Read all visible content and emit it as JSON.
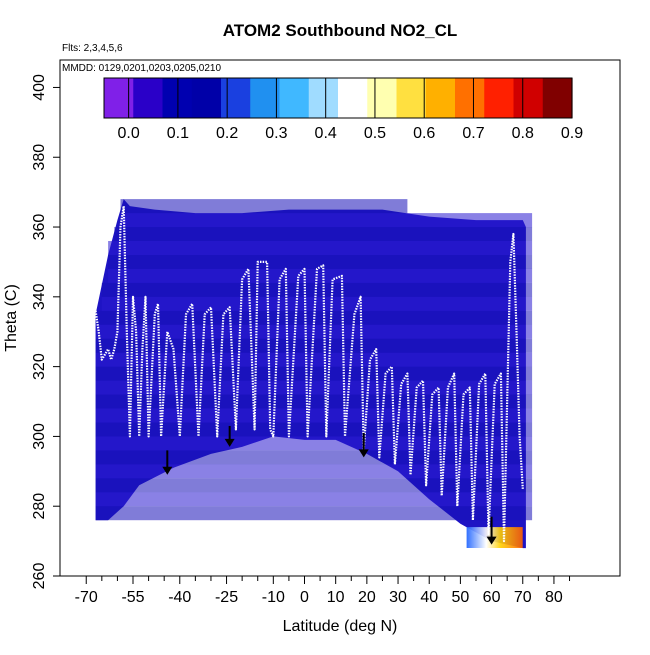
{
  "chart_data": {
    "type": "heatmap",
    "title": "ATOM2 Southbound NO2_CL",
    "annotations": [
      "Flts: 2,3,4,5,6",
      "MMDD: 0129,0201,0203,0205,0210"
    ],
    "xlabel": "Latitude (deg N)",
    "ylabel": "Theta (C)",
    "xlim": [
      -72,
      89
    ],
    "ylim": [
      260,
      405
    ],
    "x_ticks": [
      -70,
      -55,
      -40,
      -25,
      -10,
      0,
      10,
      20,
      30,
      40,
      50,
      60,
      70,
      80
    ],
    "x_minor_ticks": [
      -65,
      -60,
      -50,
      -45,
      -35,
      -30,
      -20,
      -15,
      -5,
      5,
      15,
      25,
      35,
      45,
      55,
      65,
      75,
      85
    ],
    "y_ticks": [
      260,
      280,
      300,
      320,
      340,
      360,
      380,
      400
    ],
    "colorbar": {
      "ticks": [
        "0.0",
        "0.1",
        "0.2",
        "0.3",
        "0.4",
        "0.5",
        "0.6",
        "0.7",
        "0.8",
        "0.9"
      ],
      "range": [
        -0.05,
        0.9
      ],
      "colors": [
        "#8020e8",
        "#2a00c8",
        "#0000b0",
        "#0000a8",
        "#1a40e0",
        "#2090f0",
        "#40b8ff",
        "#a0dcff",
        "#ffffff",
        "#ffffb0",
        "#ffe040",
        "#ffb000",
        "#ff7000",
        "#ff2000",
        "#d00000",
        "#800000"
      ]
    },
    "field": {
      "background_value": 0.1,
      "upper_boundary": [
        [
          -67,
          335
        ],
        [
          -63,
          352
        ],
        [
          -60,
          362
        ],
        [
          -58,
          368
        ],
        [
          -56,
          366
        ],
        [
          -48,
          365
        ],
        [
          -35,
          364
        ],
        [
          -20,
          364
        ],
        [
          -5,
          365
        ],
        [
          10,
          365
        ],
        [
          25,
          365
        ],
        [
          40,
          363
        ],
        [
          55,
          362
        ],
        [
          70,
          362
        ],
        [
          71,
          360
        ]
      ],
      "lower_boundary": [
        [
          -67,
          276
        ],
        [
          -63,
          276
        ],
        [
          -58,
          280
        ],
        [
          -53,
          286
        ],
        [
          -42,
          291
        ],
        [
          -30,
          295
        ],
        [
          -20,
          297
        ],
        [
          -10,
          300
        ],
        [
          0,
          299
        ],
        [
          10,
          299
        ],
        [
          20,
          295
        ],
        [
          30,
          290
        ],
        [
          40,
          282
        ],
        [
          50,
          275
        ],
        [
          60,
          270
        ],
        [
          70,
          268
        ],
        [
          71,
          268
        ]
      ],
      "high_value_patch": {
        "lat": [
          52,
          70
        ],
        "theta": [
          268,
          274
        ],
        "value": 0.55
      }
    },
    "flight_track": {
      "color": "#ffffff",
      "points": [
        [
          -67,
          336
        ],
        [
          -66,
          330
        ],
        [
          -65,
          322
        ],
        [
          -63,
          325
        ],
        [
          -62,
          322
        ],
        [
          -61,
          325
        ],
        [
          -60,
          330
        ],
        [
          -59,
          360
        ],
        [
          -58,
          366
        ],
        [
          -57,
          330
        ],
        [
          -56,
          300
        ],
        [
          -55,
          340
        ],
        [
          -54,
          330
        ],
        [
          -53,
          300
        ],
        [
          -52,
          325
        ],
        [
          -51,
          340
        ],
        [
          -50,
          300
        ],
        [
          -48,
          335
        ],
        [
          -47,
          338
        ],
        [
          -46,
          300
        ],
        [
          -44,
          330
        ],
        [
          -42,
          325
        ],
        [
          -40,
          300
        ],
        [
          -38,
          335
        ],
        [
          -36,
          338
        ],
        [
          -34,
          300
        ],
        [
          -32,
          335
        ],
        [
          -30,
          337
        ],
        [
          -28,
          300
        ],
        [
          -26,
          335
        ],
        [
          -24,
          337
        ],
        [
          -22,
          302
        ],
        [
          -20,
          345
        ],
        [
          -18,
          348
        ],
        [
          -16,
          302
        ],
        [
          -15,
          350
        ],
        [
          -12,
          350
        ],
        [
          -11,
          302
        ],
        [
          -10,
          300
        ],
        [
          -8,
          345
        ],
        [
          -6,
          348
        ],
        [
          -5,
          300
        ],
        [
          -2,
          346
        ],
        [
          0,
          348
        ],
        [
          1,
          300
        ],
        [
          4,
          348
        ],
        [
          6,
          349
        ],
        [
          7,
          300
        ],
        [
          9,
          345
        ],
        [
          12,
          346
        ],
        [
          13,
          300
        ],
        [
          16,
          335
        ],
        [
          18,
          340
        ],
        [
          19,
          296
        ],
        [
          21,
          322
        ],
        [
          23,
          325
        ],
        [
          24,
          294
        ],
        [
          26,
          318
        ],
        [
          28,
          320
        ],
        [
          29,
          292
        ],
        [
          31,
          315
        ],
        [
          33,
          318
        ],
        [
          34,
          289
        ],
        [
          36,
          314
        ],
        [
          38,
          316
        ],
        [
          39,
          286
        ],
        [
          41,
          312
        ],
        [
          43,
          314
        ],
        [
          44,
          283
        ],
        [
          46,
          314
        ],
        [
          48,
          318
        ],
        [
          49,
          280
        ],
        [
          51,
          312
        ],
        [
          53,
          314
        ],
        [
          54,
          276
        ],
        [
          56,
          315
        ],
        [
          58,
          318
        ],
        [
          59,
          272
        ],
        [
          61,
          315
        ],
        [
          63,
          318
        ],
        [
          64,
          270
        ],
        [
          66,
          350
        ],
        [
          67,
          358
        ],
        [
          68,
          330
        ],
        [
          69,
          300
        ],
        [
          70,
          285
        ]
      ]
    },
    "arrows": [
      {
        "lat": -44,
        "theta_start": 296,
        "theta_end": 289
      },
      {
        "lat": -24,
        "theta_start": 303,
        "theta_end": 297
      },
      {
        "lat": 19,
        "theta_start": 301,
        "theta_end": 294
      },
      {
        "lat": 60,
        "theta_start": 277,
        "theta_end": 269
      }
    ],
    "grid": false,
    "legend": "colorbar top-left inside plot"
  }
}
